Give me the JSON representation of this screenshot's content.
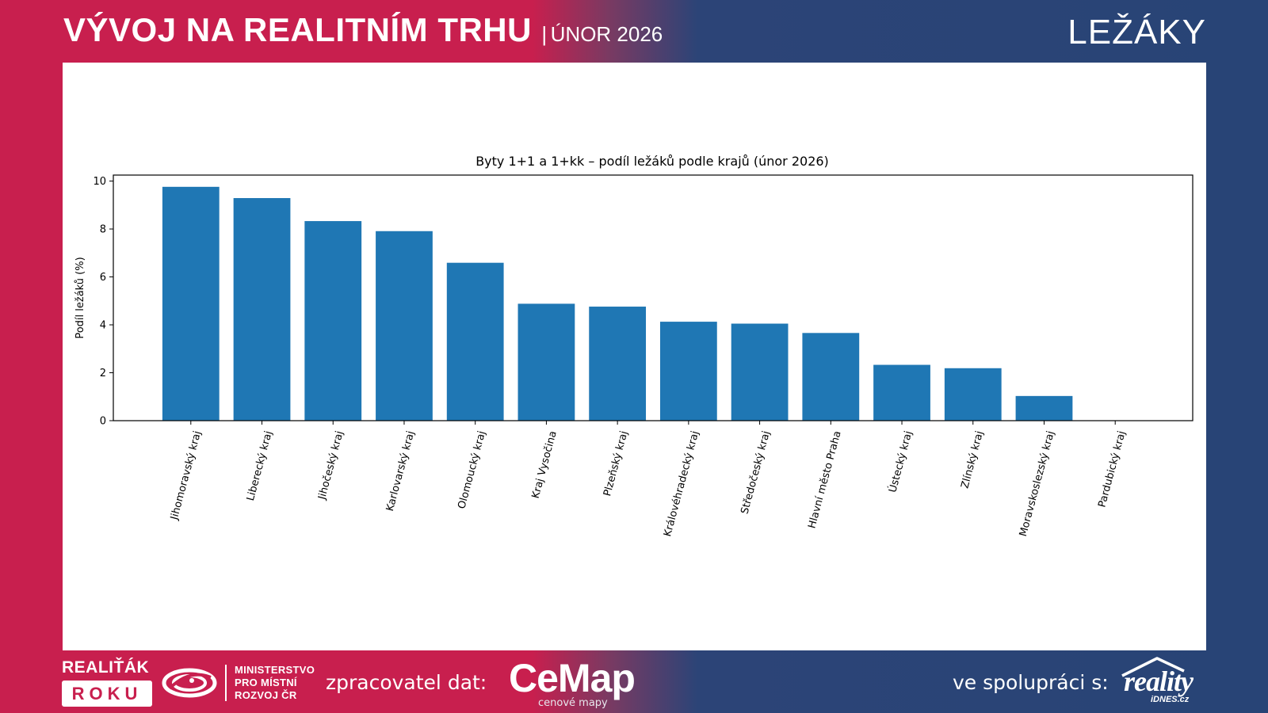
{
  "header": {
    "title": "VÝVOJ NA REALITNÍM TRHU",
    "separator": "|",
    "subtitle": "ÚNOR 2026",
    "right_label": "LEŽÁKY"
  },
  "chart_data": {
    "type": "bar",
    "title": "Byty 1+1 a 1+kk – podíl ležáků podle krajů (únor 2026)",
    "xlabel": "",
    "ylabel": "Podíl ležáků (%)",
    "ylim": [
      0,
      10.25
    ],
    "yticks": [
      0,
      2,
      4,
      6,
      8,
      10
    ],
    "ytick_labels": [
      "0",
      "2",
      "4",
      "6",
      "8",
      "10"
    ],
    "bar_color": "#1f77b4",
    "categories": [
      "Jihomoravský kraj",
      "Liberecký kraj",
      "Jihočeský kraj",
      "Karlovarský kraj",
      "Olomoucký kraj",
      "Kraj Vysočina",
      "Plzeňský kraj",
      "Královéhradecký kraj",
      "Středočeský kraj",
      "Hlavní město Praha",
      "Ústecký kraj",
      "Zlínský kraj",
      "Moravskoslezský kraj",
      "Pardubický kraj"
    ],
    "values": [
      9.76,
      9.29,
      8.33,
      7.91,
      6.59,
      4.88,
      4.76,
      4.13,
      4.05,
      3.66,
      2.33,
      2.19,
      1.03,
      0
    ]
  },
  "footer": {
    "realitak_top": "REALIŤÁK",
    "realitak_box": "ROKU",
    "ministry_line1": "MINISTERSTVO",
    "ministry_line2": "PRO MÍSTNÍ",
    "ministry_line3": "ROZVOJ ČR",
    "processor_label": "zpracovatel dat:",
    "cemap_word": "CeMap",
    "cemap_tag": "cenové mapy",
    "partner_label": "ve spolupráci s:",
    "reality_word": "reality",
    "reality_tag": "iDNES.cz"
  },
  "colors": {
    "red": "#c81f4e",
    "navy": "#284476"
  }
}
